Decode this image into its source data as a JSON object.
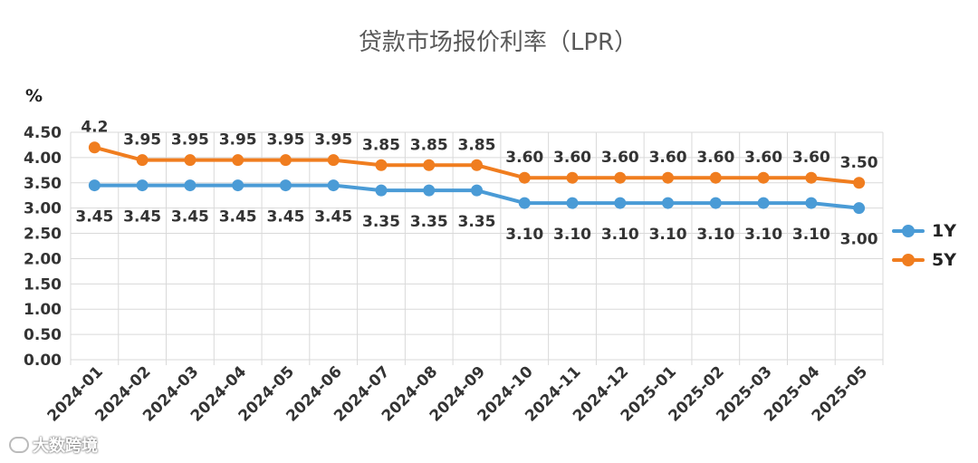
{
  "chart_data": {
    "type": "line",
    "title": "贷款市场报价利率（LPR）",
    "ylabel": "%",
    "xlabel": "",
    "ylim": [
      0,
      4.5
    ],
    "yticks": [
      "0.00",
      "0.50",
      "1.00",
      "1.50",
      "2.00",
      "2.50",
      "3.00",
      "3.50",
      "4.00",
      "4.50"
    ],
    "categories": [
      "2024-01",
      "2024-02",
      "2024-03",
      "2024-04",
      "2024-05",
      "2024-06",
      "2024-07",
      "2024-08",
      "2024-09",
      "2024-10",
      "2024-11",
      "2024-12",
      "2025-01",
      "2025-02",
      "2025-03",
      "2025-04",
      "2025-05"
    ],
    "series": [
      {
        "name": "1Y",
        "color": "#4a9bd6",
        "values": [
          3.45,
          3.45,
          3.45,
          3.45,
          3.45,
          3.45,
          3.35,
          3.35,
          3.35,
          3.1,
          3.1,
          3.1,
          3.1,
          3.1,
          3.1,
          3.1,
          3.0
        ],
        "labels": [
          "3.45",
          "3.45",
          "3.45",
          "3.45",
          "3.45",
          "3.45",
          "3.35",
          "3.35",
          "3.35",
          "3.10",
          "3.10",
          "3.10",
          "3.10",
          "3.10",
          "3.10",
          "3.10",
          "3.00"
        ]
      },
      {
        "name": "5Y",
        "color": "#f07d1f",
        "values": [
          4.2,
          3.95,
          3.95,
          3.95,
          3.95,
          3.95,
          3.85,
          3.85,
          3.85,
          3.6,
          3.6,
          3.6,
          3.6,
          3.6,
          3.6,
          3.6,
          3.5
        ],
        "labels": [
          "4.2",
          "3.95",
          "3.95",
          "3.95",
          "3.95",
          "3.95",
          "3.85",
          "3.85",
          "3.85",
          "3.60",
          "3.60",
          "3.60",
          "3.60",
          "3.60",
          "3.60",
          "3.60",
          "3.50"
        ]
      }
    ],
    "grid": true,
    "legend_position": "right"
  },
  "watermark": {
    "text": "大数跨境"
  }
}
